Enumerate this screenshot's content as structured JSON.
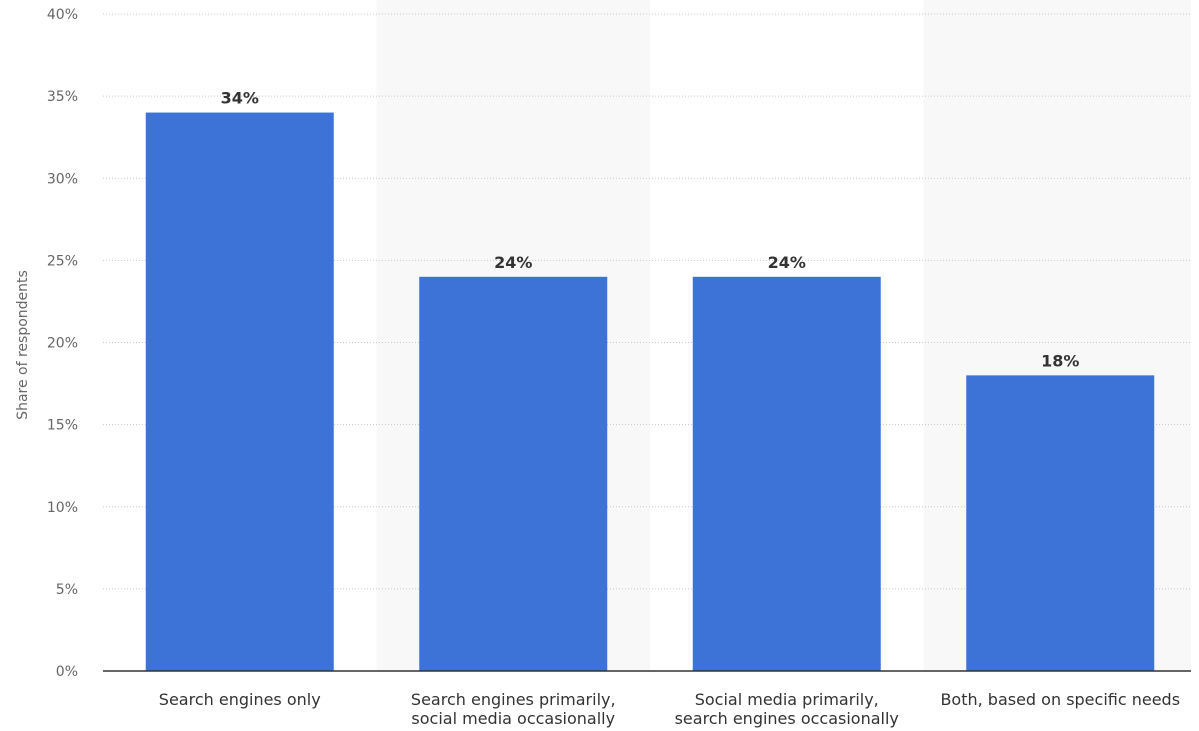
{
  "chart_data": {
    "type": "bar",
    "categories": [
      [
        "Search engines only"
      ],
      [
        "Search engines primarily,",
        "social media occasionally"
      ],
      [
        "Social media primarily,",
        "search engines occasionally"
      ],
      [
        "Both, based on specific needs"
      ]
    ],
    "values": [
      34,
      24,
      24,
      18
    ],
    "data_labels": [
      "34%",
      "24%",
      "24%",
      "18%"
    ],
    "ylabel": "Share of respondents",
    "ylim": [
      0,
      40
    ],
    "yticks": [
      0,
      5,
      10,
      15,
      20,
      25,
      30,
      35,
      40
    ],
    "ytick_labels": [
      "0%",
      "5%",
      "10%",
      "15%",
      "20%",
      "25%",
      "30%",
      "35%",
      "40%"
    ],
    "grid": true,
    "bar_color": "#3d73d6",
    "alternate_band_color": "#f8f8f8"
  }
}
